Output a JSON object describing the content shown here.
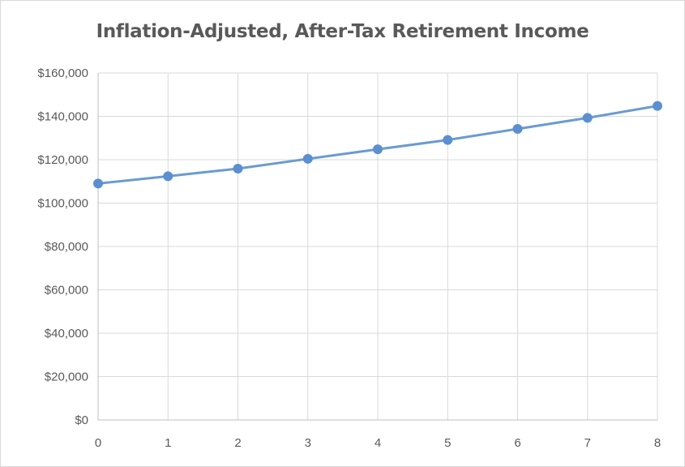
{
  "chart_data": {
    "type": "line",
    "title": "Inflation-Adjusted, After-Tax Retirement Income",
    "xlabel": "",
    "ylabel": "",
    "x": [
      0,
      1,
      2,
      3,
      4,
      5,
      6,
      7,
      8
    ],
    "series": [
      {
        "values": [
          109000,
          112400,
          115900,
          120400,
          124800,
          129100,
          134200,
          139300,
          144800
        ]
      }
    ],
    "xlim": [
      0,
      8
    ],
    "ylim": [
      0,
      160000
    ],
    "x_ticks": [
      "0",
      "1",
      "2",
      "3",
      "4",
      "5",
      "6",
      "7",
      "8"
    ],
    "y_ticks": [
      "$0",
      "$20,000",
      "$40,000",
      "$60,000",
      "$80,000",
      "$100,000",
      "$120,000",
      "$140,000",
      "$160,000"
    ],
    "grid": true,
    "legend": "none",
    "colors": {
      "line": "#6a9bd1",
      "marker": "#5b8fd0",
      "grid": "#d9d9d9",
      "axis": "#bfbfbf",
      "text": "#595959"
    }
  }
}
